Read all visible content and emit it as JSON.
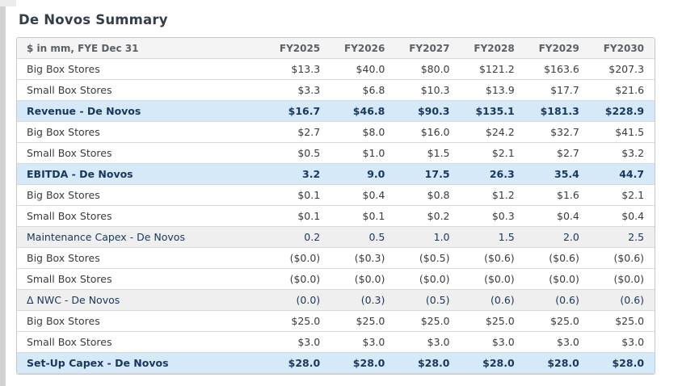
{
  "page": {
    "title": "De Novos Summary"
  },
  "colors": {
    "title_color": "#333e48",
    "header_bg": "#f4f4f4",
    "header_text": "#5b6167",
    "text_color": "#3b3b3b",
    "navy": "#17375e",
    "blue_bg": "#d6e9f8",
    "gray_bg": "#efefef",
    "row_border": "#d9d9d9",
    "table_border": "#c5c9cc"
  },
  "table": {
    "header_label": "$ in mm, FYE Dec 31",
    "columns": [
      "FY2025",
      "FY2026",
      "FY2027",
      "FY2028",
      "FY2029",
      "FY2030"
    ],
    "rows": [
      {
        "label": "Big Box Stores",
        "style": "normal",
        "values": [
          "$13.3",
          "$40.0",
          "$80.0",
          "$121.2",
          "$163.6",
          "$207.3"
        ]
      },
      {
        "label": "Small Box Stores",
        "style": "normal",
        "values": [
          "$3.3",
          "$6.8",
          "$10.3",
          "$13.9",
          "$17.7",
          "$21.6"
        ]
      },
      {
        "label": "Revenue - De Novos",
        "style": "blue",
        "values": [
          "$16.7",
          "$46.8",
          "$90.3",
          "$135.1",
          "$181.3",
          "$228.9"
        ]
      },
      {
        "label": "Big Box Stores",
        "style": "normal",
        "values": [
          "$2.7",
          "$8.0",
          "$16.0",
          "$24.2",
          "$32.7",
          "$41.5"
        ]
      },
      {
        "label": "Small Box Stores",
        "style": "normal",
        "values": [
          "$0.5",
          "$1.0",
          "$1.5",
          "$2.1",
          "$2.7",
          "$3.2"
        ]
      },
      {
        "label": "EBITDA - De Novos",
        "style": "blue",
        "values": [
          "3.2",
          "9.0",
          "17.5",
          "26.3",
          "35.4",
          "44.7"
        ]
      },
      {
        "label": "Big Box Stores",
        "style": "normal",
        "values": [
          "$0.1",
          "$0.4",
          "$0.8",
          "$1.2",
          "$1.6",
          "$2.1"
        ]
      },
      {
        "label": "Small Box Stores",
        "style": "normal",
        "values": [
          "$0.1",
          "$0.1",
          "$0.2",
          "$0.3",
          "$0.4",
          "$0.4"
        ]
      },
      {
        "label": "Maintenance Capex - De Novos",
        "style": "gray",
        "values": [
          "0.2",
          "0.5",
          "1.0",
          "1.5",
          "2.0",
          "2.5"
        ]
      },
      {
        "label": "Big Box Stores",
        "style": "normal",
        "values": [
          "($0.0)",
          "($0.3)",
          "($0.5)",
          "($0.6)",
          "($0.6)",
          "($0.6)"
        ]
      },
      {
        "label": "Small Box Stores",
        "style": "normal",
        "values": [
          "($0.0)",
          "($0.0)",
          "($0.0)",
          "($0.0)",
          "($0.0)",
          "($0.0)"
        ]
      },
      {
        "label": "Δ NWC - De Novos",
        "style": "gray",
        "values": [
          "(0.0)",
          "(0.3)",
          "(0.5)",
          "(0.6)",
          "(0.6)",
          "(0.6)"
        ]
      },
      {
        "label": "Big Box Stores",
        "style": "normal",
        "values": [
          "$25.0",
          "$25.0",
          "$25.0",
          "$25.0",
          "$25.0",
          "$25.0"
        ]
      },
      {
        "label": "Small Box Stores",
        "style": "normal",
        "values": [
          "$3.0",
          "$3.0",
          "$3.0",
          "$3.0",
          "$3.0",
          "$3.0"
        ]
      },
      {
        "label": "Set-Up Capex - De Novos",
        "style": "blue",
        "values": [
          "$28.0",
          "$28.0",
          "$28.0",
          "$28.0",
          "$28.0",
          "$28.0"
        ]
      }
    ]
  }
}
